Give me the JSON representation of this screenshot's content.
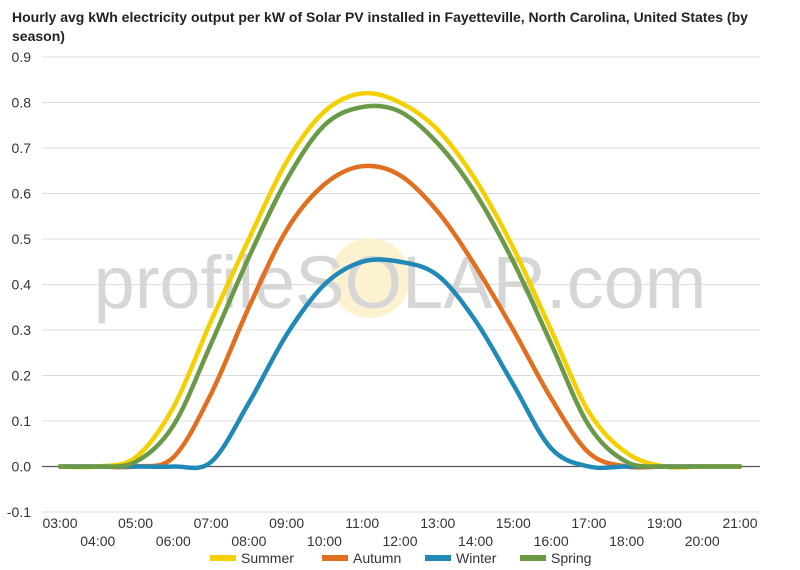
{
  "chart_data": {
    "type": "line",
    "title": "Hourly avg kWh electricity output per kW of Solar PV installed in Fayetteville, North Carolina, United States (by season)",
    "xlabel": "",
    "ylabel": "",
    "ylim": [
      -0.1,
      0.9
    ],
    "yticks": [
      "-0.1",
      "0.0",
      "0.1",
      "0.2",
      "0.3",
      "0.4",
      "0.5",
      "0.6",
      "0.7",
      "0.8",
      "0.9"
    ],
    "xtick_labels": [
      "03:00",
      "04:00",
      "05:00",
      "06:00",
      "07:00",
      "08:00",
      "09:00",
      "10:00",
      "11:00",
      "12:00",
      "13:00",
      "14:00",
      "15:00",
      "16:00",
      "17:00",
      "18:00",
      "19:00",
      "20:00",
      "21:00"
    ],
    "x": [
      3,
      4,
      5,
      6,
      7,
      8,
      9,
      10,
      11,
      12,
      13,
      14,
      15,
      16,
      17,
      18,
      19,
      20,
      21
    ],
    "grid": true,
    "legend_position": "bottom",
    "watermark": "profileSOLAR.com",
    "series": [
      {
        "name": "Summer",
        "color": "#f5d000",
        "values": [
          0.0,
          0.0,
          0.02,
          0.13,
          0.32,
          0.5,
          0.67,
          0.78,
          0.82,
          0.8,
          0.74,
          0.63,
          0.48,
          0.3,
          0.12,
          0.03,
          0.0,
          0.0,
          0.0
        ]
      },
      {
        "name": "Autumn",
        "color": "#e07020",
        "values": [
          0.0,
          0.0,
          0.0,
          0.02,
          0.16,
          0.35,
          0.52,
          0.62,
          0.66,
          0.64,
          0.56,
          0.44,
          0.3,
          0.15,
          0.03,
          0.0,
          0.0,
          0.0,
          0.0
        ]
      },
      {
        "name": "Winter",
        "color": "#2189b8",
        "values": [
          0.0,
          0.0,
          0.0,
          0.0,
          0.01,
          0.14,
          0.29,
          0.4,
          0.45,
          0.45,
          0.42,
          0.32,
          0.18,
          0.04,
          0.0,
          0.0,
          0.0,
          0.0,
          0.0
        ]
      },
      {
        "name": "Spring",
        "color": "#6a9a48",
        "values": [
          0.0,
          0.0,
          0.01,
          0.09,
          0.27,
          0.46,
          0.63,
          0.75,
          0.79,
          0.78,
          0.71,
          0.6,
          0.45,
          0.27,
          0.09,
          0.01,
          0.0,
          0.0,
          0.0
        ]
      }
    ]
  }
}
